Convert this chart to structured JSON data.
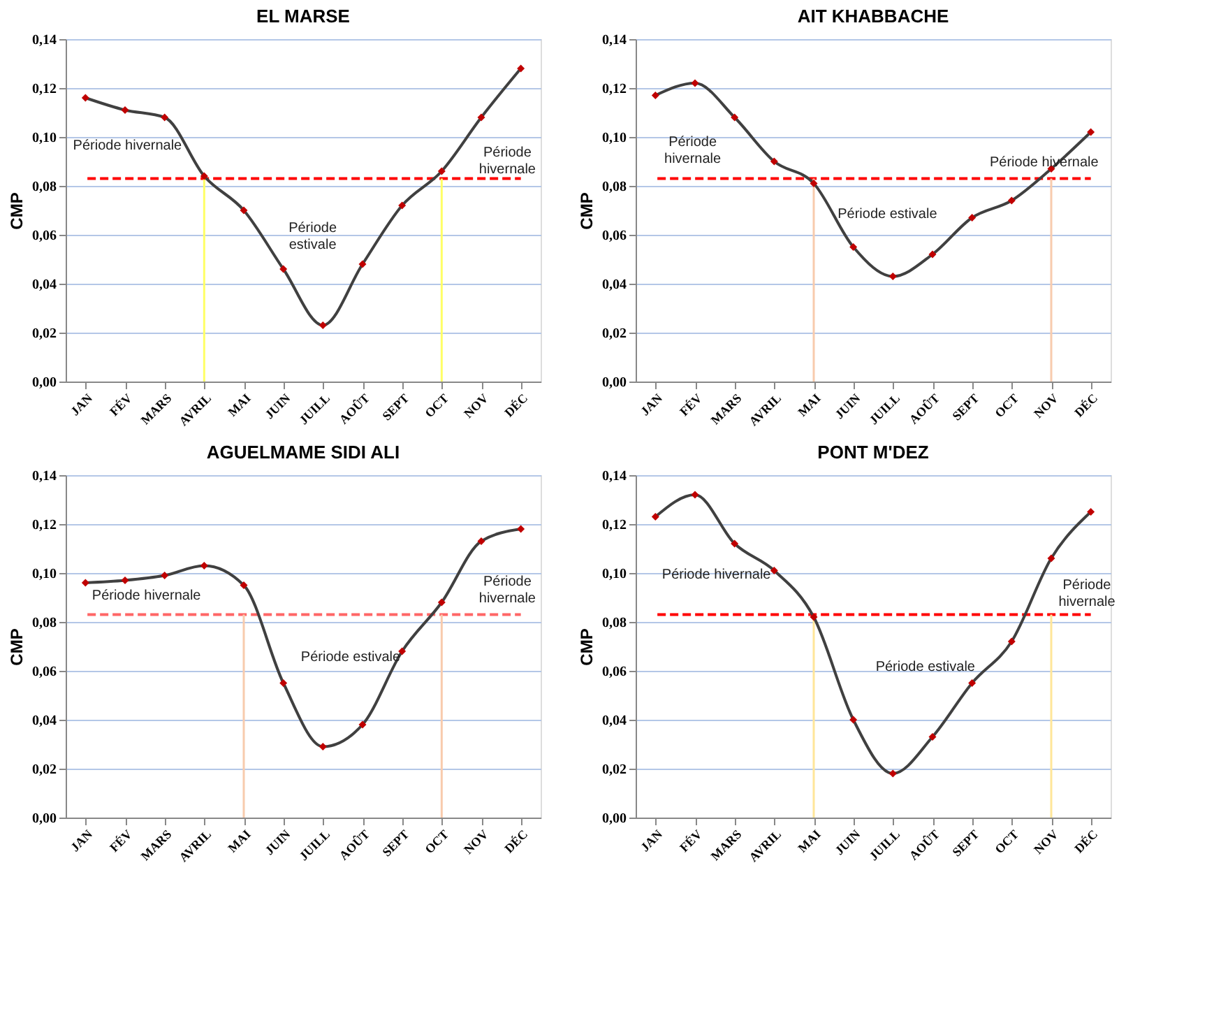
{
  "chart_data": [
    {
      "type": "line",
      "title": "EL MARSE",
      "ylabel": "CMP",
      "categories": [
        "JAN",
        "FÉV",
        "MARS",
        "AVRIL",
        "MAI",
        "JUIN",
        "JUILL",
        "AOÛT",
        "SEPT",
        "OCT",
        "NOV",
        "DÉC"
      ],
      "series": [
        {
          "color": "#404040",
          "values": [
            0.116,
            0.111,
            0.108,
            0.084,
            0.07,
            0.046,
            0.023,
            0.048,
            0.072,
            0.086,
            0.108,
            0.128
          ]
        }
      ],
      "ylim": [
        0,
        0.14
      ],
      "yticks": [
        {
          "value": 0,
          "label": "0,00"
        },
        {
          "value": 0.02,
          "label": "0,02"
        },
        {
          "value": 0.04,
          "label": "0,04"
        },
        {
          "value": 0.06,
          "label": "0,06"
        },
        {
          "value": 0.08,
          "label": "0,08"
        },
        {
          "value": 0.1,
          "label": "0,10"
        },
        {
          "value": 0.12,
          "label": "0,12"
        },
        {
          "value": 0.14,
          "label": "0,14"
        }
      ],
      "grid": "y",
      "marker": "diamond",
      "line_style": "solid",
      "ref_lines": [
        {
          "axis": "y",
          "value": 0.083,
          "color": "#ff0000",
          "line_style": "dashed"
        },
        {
          "axis": "x",
          "value": "AVRIL",
          "color": "#ffff66"
        },
        {
          "axis": "x",
          "value": "OCT",
          "color": "#ffff66"
        }
      ],
      "annotations": [
        "Période hivernale",
        "Période\nestivale",
        "Période\nhivernale"
      ]
    },
    {
      "type": "line",
      "title": "AIT KHABBACHE",
      "ylabel": "CMP",
      "categories": [
        "JAN",
        "FÉV",
        "MARS",
        "AVRIL",
        "MAI",
        "JUIN",
        "JUILL",
        "AOÛT",
        "SEPT",
        "OCT",
        "NOV",
        "DÉC"
      ],
      "series": [
        {
          "color": "#404040",
          "values": [
            0.117,
            0.122,
            0.108,
            0.09,
            0.081,
            0.055,
            0.043,
            0.052,
            0.067,
            0.074,
            0.087,
            0.102
          ]
        }
      ],
      "ylim": [
        0,
        0.14
      ],
      "yticks": [
        {
          "value": 0,
          "label": "0,00"
        },
        {
          "value": 0.02,
          "label": "0,02"
        },
        {
          "value": 0.04,
          "label": "0,04"
        },
        {
          "value": 0.06,
          "label": "0,06"
        },
        {
          "value": 0.08,
          "label": "0,08"
        },
        {
          "value": 0.1,
          "label": "0,10"
        },
        {
          "value": 0.12,
          "label": "0,12"
        },
        {
          "value": 0.14,
          "label": "0,14"
        }
      ],
      "grid": "y",
      "marker": "diamond",
      "line_style": "solid",
      "ref_lines": [
        {
          "axis": "y",
          "value": 0.083,
          "color": "#ff0000",
          "line_style": "dashed"
        },
        {
          "axis": "x",
          "value": "MAI",
          "color": "#f8cbad"
        },
        {
          "axis": "x",
          "value": "NOV",
          "color": "#f8cbad"
        }
      ],
      "annotations": [
        "Période\nhivernale",
        "Période estivale",
        "Période hivernale"
      ]
    },
    {
      "type": "line",
      "title": "AGUELMAME SIDI ALI",
      "ylabel": "CMP",
      "categories": [
        "JAN",
        "FÉV",
        "MARS",
        "AVRIL",
        "MAI",
        "JUIN",
        "JUILL",
        "AOÛT",
        "SEPT",
        "OCT",
        "NOV",
        "DÉC"
      ],
      "series": [
        {
          "color": "#404040",
          "values": [
            0.096,
            0.097,
            0.099,
            0.103,
            0.095,
            0.055,
            0.029,
            0.038,
            0.068,
            0.088,
            0.113,
            0.118
          ]
        }
      ],
      "ylim": [
        0,
        0.14
      ],
      "yticks": [
        {
          "value": 0,
          "label": "0,00"
        },
        {
          "value": 0.02,
          "label": "0,02"
        },
        {
          "value": 0.04,
          "label": "0,04"
        },
        {
          "value": 0.06,
          "label": "0,06"
        },
        {
          "value": 0.08,
          "label": "0,08"
        },
        {
          "value": 0.1,
          "label": "0,10"
        },
        {
          "value": 0.12,
          "label": "0,12"
        },
        {
          "value": 0.14,
          "label": "0,14"
        }
      ],
      "grid": "y",
      "marker": "diamond",
      "line_style": "solid",
      "ref_lines": [
        {
          "axis": "y",
          "value": 0.083,
          "color": "#ff6666",
          "line_style": "dashed"
        },
        {
          "axis": "x",
          "value": "MAI",
          "color": "#f8cbad"
        },
        {
          "axis": "x",
          "value": "OCT",
          "color": "#f8cbad"
        }
      ],
      "annotations": [
        "Période hivernale",
        "Période estivale",
        "Période\nhivernale"
      ]
    },
    {
      "type": "line",
      "title": "PONT M'DEZ",
      "ylabel": "CMP",
      "categories": [
        "JAN",
        "FÉV",
        "MARS",
        "AVRIL",
        "MAI",
        "JUIN",
        "JUILL",
        "AOÛT",
        "SEPT",
        "OCT",
        "NOV",
        "DÉC"
      ],
      "series": [
        {
          "color": "#404040",
          "values": [
            0.123,
            0.132,
            0.112,
            0.101,
            0.082,
            0.04,
            0.018,
            0.033,
            0.055,
            0.072,
            0.106,
            0.125
          ]
        }
      ],
      "ylim": [
        0,
        0.14
      ],
      "yticks": [
        {
          "value": 0,
          "label": "0,00"
        },
        {
          "value": 0.02,
          "label": "0,02"
        },
        {
          "value": 0.04,
          "label": "0,04"
        },
        {
          "value": 0.06,
          "label": "0,06"
        },
        {
          "value": 0.08,
          "label": "0,08"
        },
        {
          "value": 0.1,
          "label": "0,10"
        },
        {
          "value": 0.12,
          "label": "0,12"
        },
        {
          "value": 0.14,
          "label": "0,14"
        }
      ],
      "grid": "y",
      "marker": "diamond",
      "line_style": "solid",
      "ref_lines": [
        {
          "axis": "y",
          "value": 0.083,
          "color": "#ff0000",
          "line_style": "dashed"
        },
        {
          "axis": "x",
          "value": "MAI",
          "color": "#ffe699"
        },
        {
          "axis": "x",
          "value": "NOV",
          "color": "#ffe699"
        }
      ],
      "annotations": [
        "Période hivernale",
        "Période estivale",
        "Période\nhivernale"
      ]
    }
  ]
}
